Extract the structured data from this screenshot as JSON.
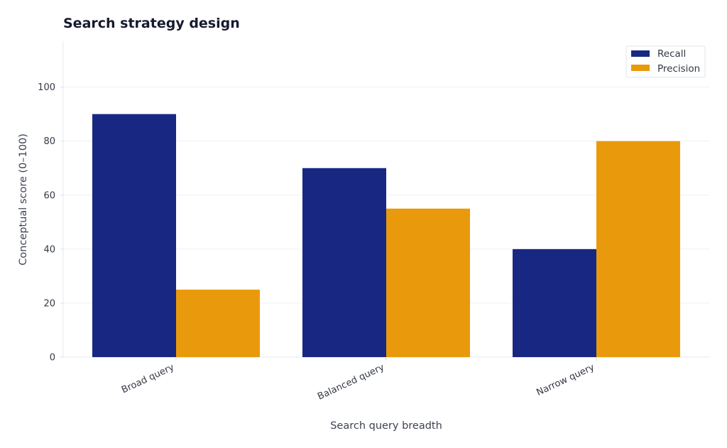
{
  "chart_data": {
    "type": "bar",
    "title": "Search strategy design",
    "xlabel": "Search query breadth",
    "ylabel": "Conceptual score (0–100)",
    "categories": [
      "Broad query",
      "Balanced query",
      "Narrow query"
    ],
    "series": [
      {
        "name": "Recall",
        "color": "#182882",
        "values": [
          90,
          70,
          40
        ]
      },
      {
        "name": "Precision",
        "color": "#E99A0C",
        "values": [
          25,
          55,
          80
        ]
      }
    ],
    "ylim": [
      0,
      117
    ],
    "yticks": [
      0,
      20,
      40,
      60,
      80,
      100
    ],
    "grid": true,
    "legend_position": "top-right"
  }
}
